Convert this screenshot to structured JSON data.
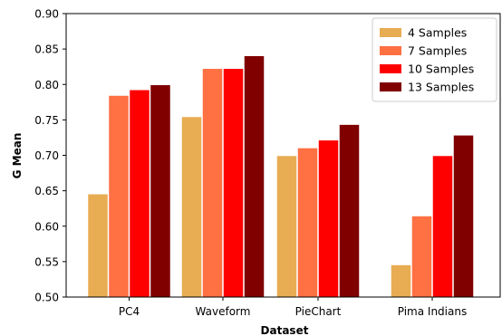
{
  "chart_data": {
    "type": "bar",
    "xlabel": "Dataset",
    "ylabel": "G Mean",
    "ylim": [
      0.5,
      0.9
    ],
    "yticks": [
      "0.50",
      "0.55",
      "0.60",
      "0.65",
      "0.70",
      "0.75",
      "0.80",
      "0.85",
      "0.90"
    ],
    "categories": [
      "PC4",
      "Waveform",
      "PieChart",
      "Pima Indians"
    ],
    "series": [
      {
        "name": "4 Samples",
        "color": "#e8ac52",
        "values": [
          0.645,
          0.754,
          0.699,
          0.545
        ]
      },
      {
        "name": "7 Samples",
        "color": "#ff7043",
        "values": [
          0.784,
          0.822,
          0.71,
          0.614
        ]
      },
      {
        "name": "10 Samples",
        "color": "#ff0000",
        "values": [
          0.792,
          0.822,
          0.721,
          0.699
        ]
      },
      {
        "name": "13 Samples",
        "color": "#800000",
        "values": [
          0.799,
          0.84,
          0.743,
          0.728
        ]
      }
    ],
    "grid": false,
    "legend": "top-right"
  }
}
